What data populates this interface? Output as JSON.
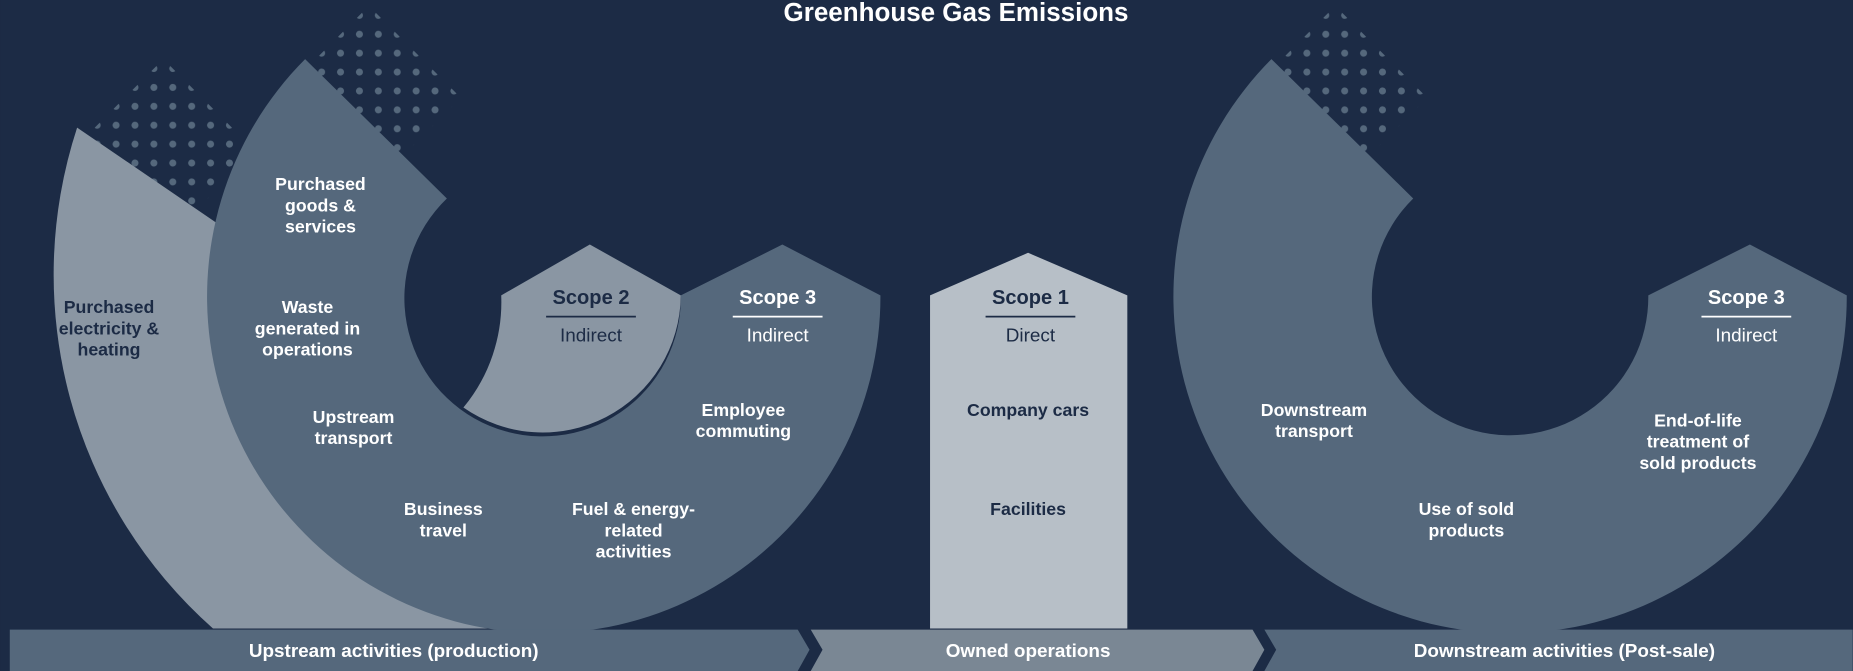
{
  "title": "Greenhouse Gas Emissions",
  "scopes": [
    {
      "name": "Scope 2",
      "kind": "Indirect"
    },
    {
      "name": "Scope 3",
      "kind": "Indirect"
    },
    {
      "name": "Scope 1",
      "kind": "Direct"
    },
    {
      "name": "Scope 3",
      "kind": "Indirect"
    }
  ],
  "categories": [
    [
      "Purchased",
      "electricity &",
      "heating"
    ],
    [
      "Purchased",
      "goods &",
      "services"
    ],
    [
      "Waste",
      "generated in",
      "operations"
    ],
    [
      "Upstream",
      "transport"
    ],
    [
      "Business",
      "travel"
    ],
    [
      "Fuel & energy-",
      "related",
      "activities"
    ],
    [
      "Employee",
      "commuting"
    ],
    [
      "Company cars"
    ],
    [
      "Facilities"
    ],
    [
      "Downstream",
      "transport"
    ],
    [
      "Use of sold",
      "products"
    ],
    [
      "End-of-life",
      "treatment of",
      "sold products"
    ]
  ],
  "stages": [
    "Upstream activities (production)",
    "Owned operations",
    "Downstream activities (Post-sale)"
  ]
}
